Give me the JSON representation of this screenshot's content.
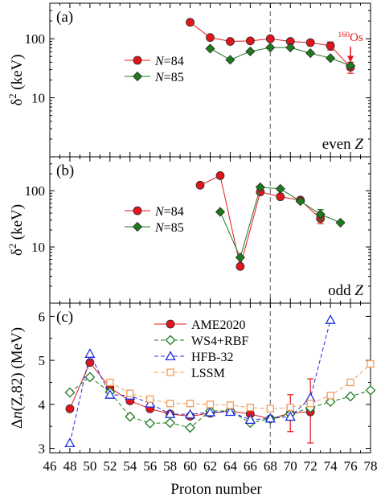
{
  "xlabel": "Proton number",
  "x_ticks": [
    46,
    48,
    50,
    52,
    54,
    56,
    58,
    60,
    62,
    64,
    66,
    68,
    70,
    72,
    74,
    76,
    78
  ],
  "xlim": [
    46,
    78
  ],
  "dashed_x": 68,
  "colors": {
    "red": "#e3151c",
    "green": "#1e7a1e",
    "blue": "#1f2ee0",
    "orange": "#f39a55",
    "pink": "#f0a0c8",
    "dash": "#707070"
  },
  "chart_data": [
    {
      "type": "line",
      "panel_label": "(a)",
      "ylabel_main": "δ",
      "ylabel_sup": "2",
      "ylabel_rest": " (keV)",
      "yscale": "log",
      "ylim": [
        1,
        400
      ],
      "y_ticks": [
        10,
        100
      ],
      "y_tick_labels": [
        "10",
        "100"
      ],
      "corner_text": "even ",
      "corner_italic": "Z",
      "annotation": {
        "sup": "160",
        "text": "Os",
        "x": 76,
        "y": 33
      },
      "series": [
        {
          "name_pre": "",
          "name_italic": "N",
          "name_post": "=84",
          "color_key": "red",
          "marker": "circle",
          "filled": true,
          "dash": false,
          "points": [
            [
              60,
              190
            ],
            [
              62,
              105
            ],
            [
              64,
              90
            ],
            [
              66,
              92
            ],
            [
              68,
              100
            ],
            [
              70,
              90
            ],
            [
              72,
              86
            ],
            [
              74,
              76
            ],
            [
              76,
              33
            ]
          ],
          "errors": [
            [
              74,
              64,
              88
            ],
            [
              76,
              26,
              40
            ]
          ]
        },
        {
          "name_pre": "",
          "name_italic": "N",
          "name_post": "=85",
          "color_key": "green",
          "marker": "diamond",
          "filled": true,
          "dash": false,
          "points": [
            [
              62,
              68
            ],
            [
              64,
              44
            ],
            [
              66,
              61
            ],
            [
              68,
              71
            ],
            [
              70,
              71
            ],
            [
              72,
              57
            ],
            [
              74,
              47
            ],
            [
              76,
              35
            ]
          ],
          "errors": []
        }
      ]
    },
    {
      "type": "line",
      "panel_label": "(b)",
      "ylabel_main": "δ",
      "ylabel_sup": "2",
      "ylabel_rest": " (keV)",
      "yscale": "log",
      "ylim": [
        1,
        400
      ],
      "y_ticks": [
        10,
        100
      ],
      "y_tick_labels": [
        "10",
        "100"
      ],
      "corner_text": "odd ",
      "corner_italic": "Z",
      "series": [
        {
          "name_pre": "",
          "name_italic": "N",
          "name_post": "=84",
          "color_key": "red",
          "marker": "circle",
          "filled": true,
          "dash": false,
          "points": [
            [
              61,
              125
            ],
            [
              63,
              185
            ],
            [
              65,
              4.5
            ],
            [
              67,
              95
            ],
            [
              69,
              78
            ],
            [
              71,
              68
            ],
            [
              73,
              32
            ]
          ],
          "errors": [
            [
              73,
              26,
              38
            ]
          ]
        },
        {
          "name_pre": "",
          "name_italic": "N",
          "name_post": "=85",
          "color_key": "green",
          "marker": "diamond",
          "filled": true,
          "dash": false,
          "points": [
            [
              63,
              42
            ],
            [
              65,
              6.5
            ],
            [
              67,
              115
            ],
            [
              69,
              108
            ],
            [
              71,
              65
            ],
            [
              73,
              38
            ],
            [
              75,
              27
            ]
          ],
          "errors": [
            [
              73,
              30,
              46
            ]
          ]
        }
      ]
    },
    {
      "type": "line",
      "panel_label": "(c)",
      "ylabel_main": "Δ",
      "ylabel_italic": "n",
      "ylabel_rest": "(Z,82) (MeV)",
      "yscale": "linear",
      "ylim": [
        2.9,
        6.3
      ],
      "y_ticks": [
        3,
        4,
        5,
        6
      ],
      "y_tick_labels": [
        "3",
        "4",
        "5",
        "6"
      ],
      "series": [
        {
          "name_pre": "AME2020",
          "name_italic": "",
          "name_post": "",
          "color_key": "red",
          "marker": "circle",
          "filled": true,
          "dash": false,
          "points": [
            [
              48,
              3.9
            ],
            [
              50,
              4.95
            ],
            [
              52,
              4.38
            ],
            [
              54,
              4.08
            ],
            [
              56,
              3.9
            ],
            [
              58,
              3.78
            ],
            [
              60,
              3.73
            ],
            [
              62,
              3.8
            ],
            [
              64,
              3.85
            ],
            [
              66,
              3.78
            ],
            [
              68,
              3.67
            ],
            [
              70,
              3.8
            ],
            [
              72,
              3.83
            ]
          ],
          "errors": [
            [
              70,
              3.38,
              4.22
            ],
            [
              72,
              3.12,
              4.58
            ]
          ]
        },
        {
          "name_pre": "WS4+RBF",
          "name_italic": "",
          "name_post": "",
          "color_key": "green",
          "marker": "diamond",
          "filled": false,
          "dash": true,
          "points": [
            [
              48,
              4.27
            ],
            [
              50,
              4.62
            ],
            [
              52,
              4.28
            ],
            [
              54,
              3.72
            ],
            [
              56,
              3.57
            ],
            [
              58,
              3.58
            ],
            [
              60,
              3.47
            ],
            [
              62,
              3.85
            ],
            [
              64,
              3.85
            ],
            [
              66,
              3.58
            ],
            [
              68,
              3.67
            ],
            [
              70,
              3.78
            ],
            [
              72,
              3.92
            ],
            [
              74,
              4.06
            ],
            [
              76,
              4.18
            ],
            [
              78,
              4.32
            ]
          ],
          "errors": []
        },
        {
          "name_pre": "HFB-32",
          "name_italic": "",
          "name_post": "",
          "color_key": "blue",
          "marker": "triangle",
          "filled": false,
          "dash": true,
          "points": [
            [
              48,
              3.12
            ],
            [
              50,
              5.15
            ],
            [
              52,
              4.22
            ],
            [
              54,
              4.2
            ],
            [
              56,
              4.02
            ],
            [
              58,
              3.78
            ],
            [
              60,
              3.77
            ],
            [
              62,
              3.82
            ],
            [
              64,
              3.83
            ],
            [
              66,
              3.65
            ],
            [
              68,
              3.68
            ],
            [
              70,
              3.72
            ],
            [
              72,
              4.15
            ],
            [
              74,
              5.92
            ]
          ],
          "errors": []
        },
        {
          "name_pre": "LSSM",
          "name_italic": "",
          "name_post": "",
          "color_key": "orange",
          "marker": "square",
          "filled": false,
          "dash": true,
          "points": [
            [
              52,
              4.5
            ],
            [
              54,
              4.25
            ],
            [
              56,
              4.12
            ],
            [
              58,
              4.02
            ],
            [
              60,
              4.02
            ],
            [
              62,
              4.0
            ],
            [
              64,
              3.98
            ],
            [
              66,
              3.93
            ],
            [
              68,
              3.9
            ],
            [
              70,
              3.93
            ],
            [
              72,
              4.02
            ],
            [
              74,
              4.2
            ],
            [
              76,
              4.5
            ],
            [
              78,
              4.92
            ]
          ],
          "errors": []
        }
      ]
    }
  ]
}
